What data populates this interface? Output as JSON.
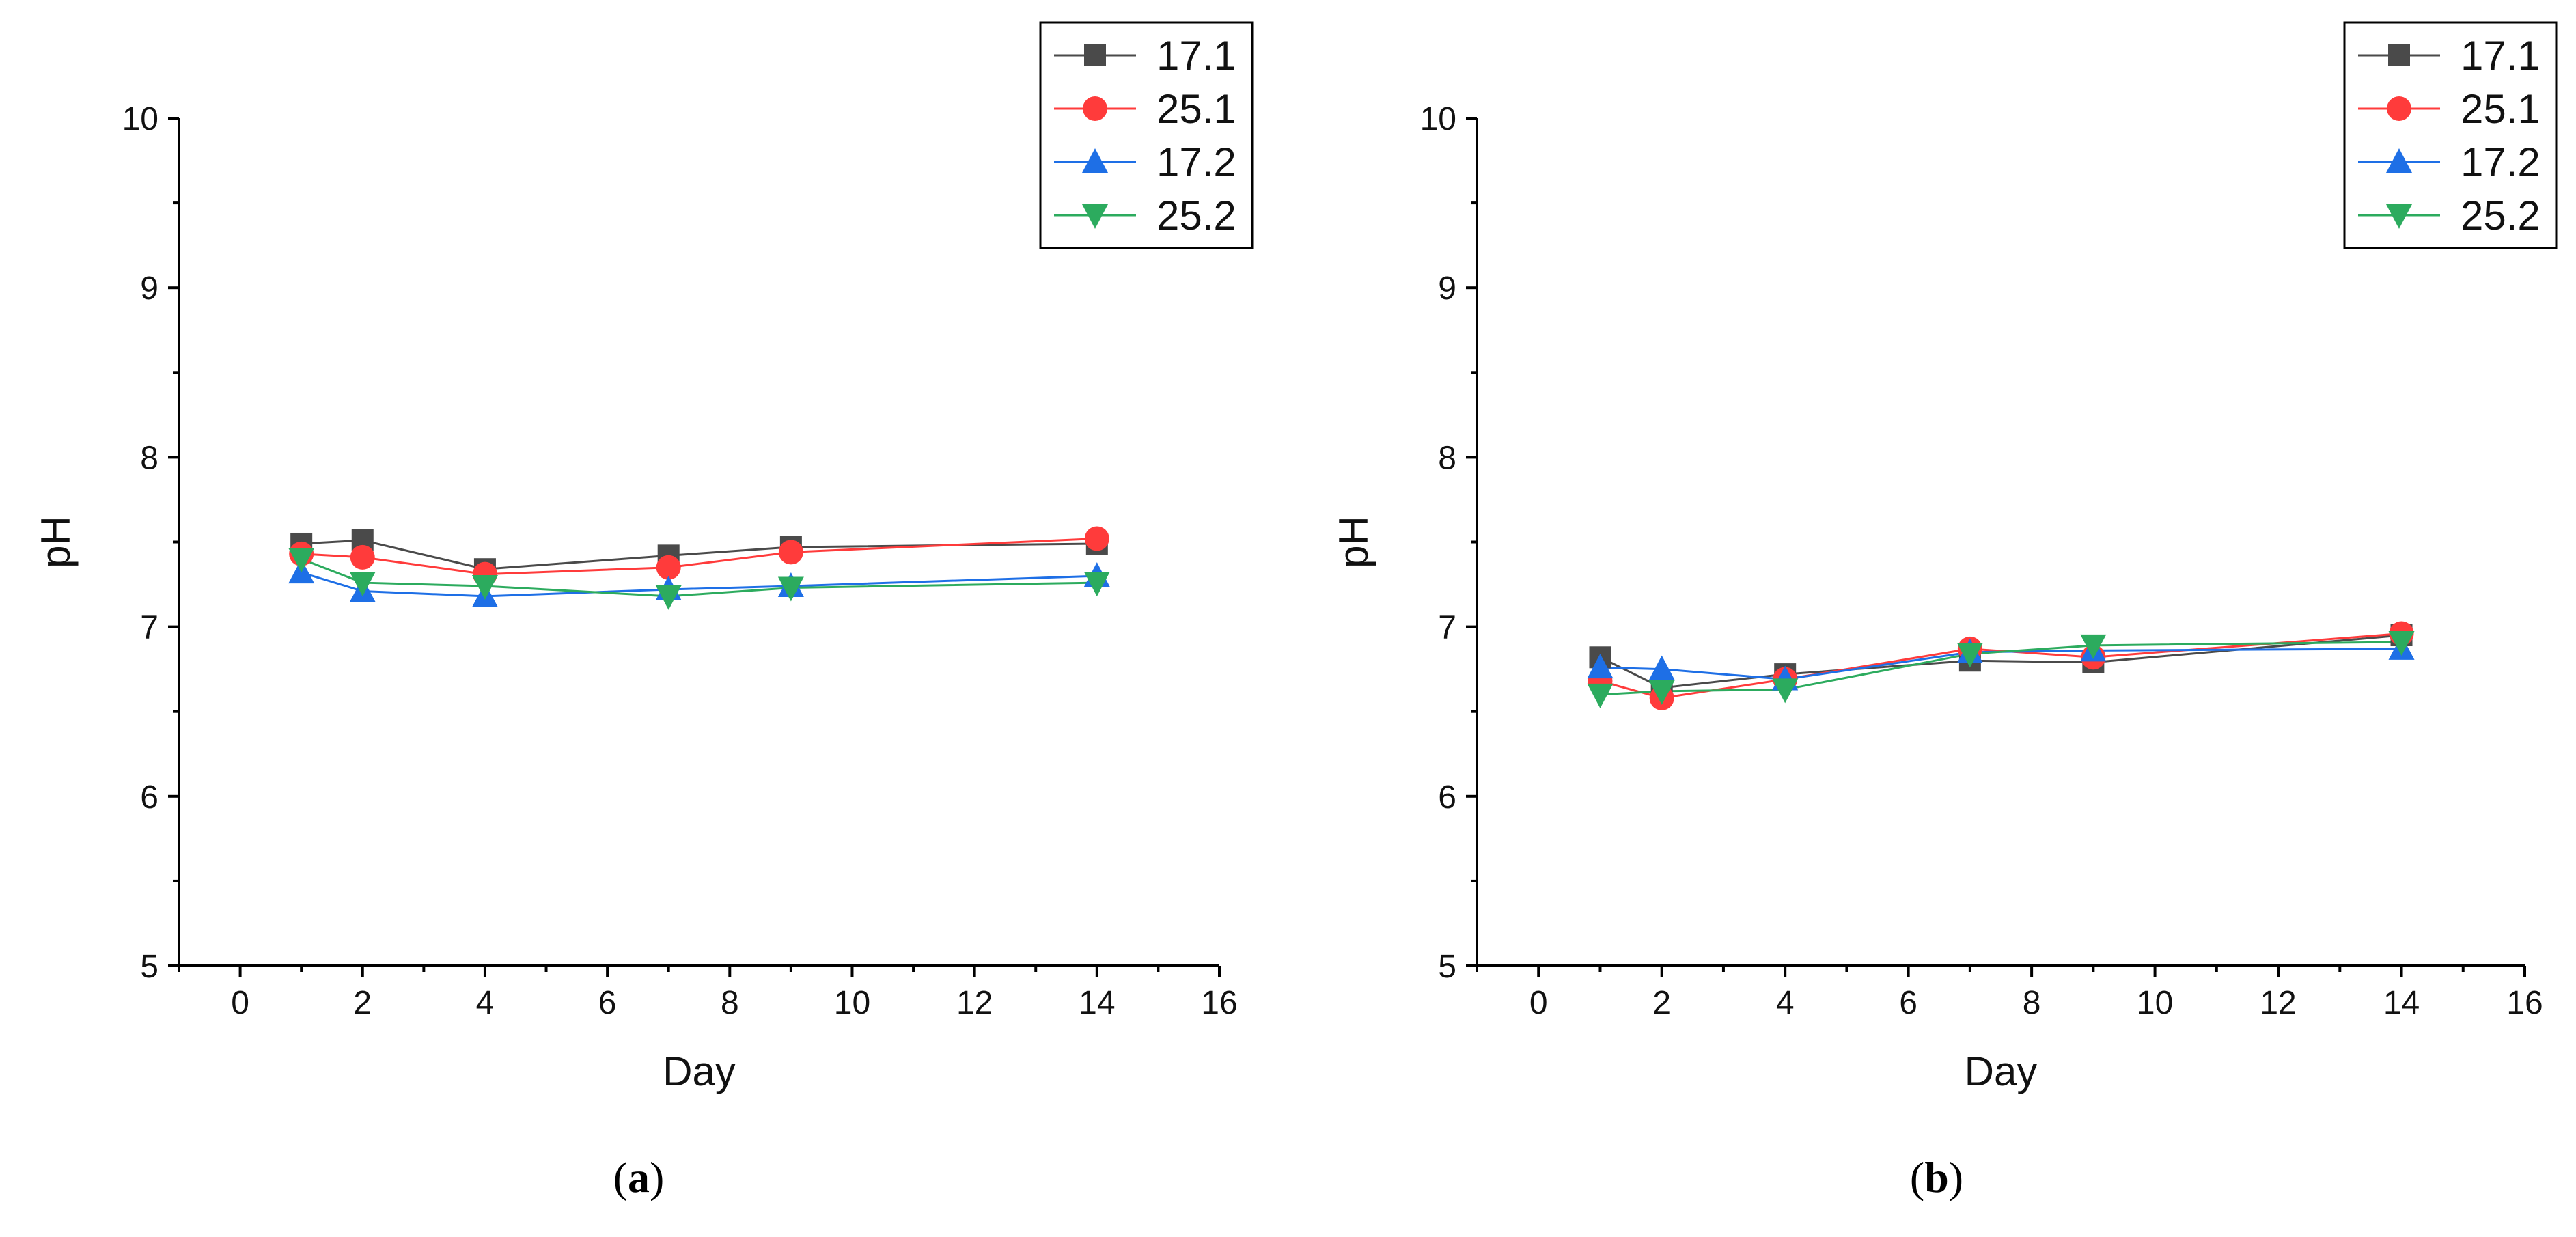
{
  "chart_data": [
    {
      "type": "line",
      "panel_label": "(a)",
      "xlabel": "Day",
      "ylabel": "pH",
      "xlim": [
        -1,
        16
      ],
      "ylim": [
        5,
        10
      ],
      "xticks": [
        "0",
        "2",
        "4",
        "6",
        "8",
        "10",
        "12",
        "14",
        "16"
      ],
      "yticks": [
        "5",
        "6",
        "7",
        "8",
        "9",
        "10"
      ],
      "legend_position": "top-right",
      "x": [
        1,
        2,
        4,
        7,
        9,
        14
      ],
      "series": [
        {
          "name": "17.1",
          "color": "#4a4a4a",
          "marker": "square",
          "values": [
            7.49,
            7.51,
            7.34,
            7.42,
            7.47,
            7.49
          ]
        },
        {
          "name": "25.1",
          "color": "#ff3b3b",
          "marker": "circle",
          "values": [
            7.43,
            7.41,
            7.31,
            7.35,
            7.44,
            7.52
          ]
        },
        {
          "name": "17.2",
          "color": "#1e6fe6",
          "marker": "triangle-up",
          "values": [
            7.32,
            7.21,
            7.18,
            7.22,
            7.24,
            7.3
          ]
        },
        {
          "name": "25.2",
          "color": "#2cab5e",
          "marker": "triangle-down",
          "values": [
            7.4,
            7.26,
            7.24,
            7.18,
            7.23,
            7.26
          ]
        }
      ]
    },
    {
      "type": "line",
      "panel_label": "(b)",
      "xlabel": "Day",
      "ylabel": "pH",
      "xlim": [
        -1,
        16
      ],
      "ylim": [
        5,
        10
      ],
      "xticks": [
        "0",
        "2",
        "4",
        "6",
        "8",
        "10",
        "12",
        "14",
        "16"
      ],
      "yticks": [
        "5",
        "6",
        "7",
        "8",
        "9",
        "10"
      ],
      "legend_position": "top-right",
      "x": [
        1,
        2,
        4,
        7,
        9,
        14
      ],
      "series": [
        {
          "name": "17.1",
          "color": "#4a4a4a",
          "marker": "square",
          "values": [
            6.82,
            6.64,
            6.72,
            6.8,
            6.79,
            6.95
          ]
        },
        {
          "name": "25.1",
          "color": "#ff3b3b",
          "marker": "circle",
          "values": [
            6.68,
            6.58,
            6.69,
            6.87,
            6.82,
            6.96
          ]
        },
        {
          "name": "17.2",
          "color": "#1e6fe6",
          "marker": "triangle-up",
          "values": [
            6.76,
            6.75,
            6.69,
            6.85,
            6.86,
            6.87
          ]
        },
        {
          "name": "25.2",
          "color": "#2cab5e",
          "marker": "triangle-down",
          "values": [
            6.6,
            6.62,
            6.63,
            6.84,
            6.89,
            6.91
          ]
        }
      ]
    }
  ]
}
